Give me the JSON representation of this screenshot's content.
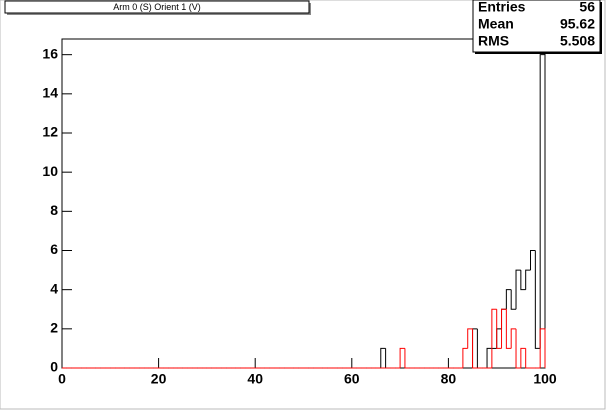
{
  "chart_data": {
    "type": "histogram",
    "title": "Arm 0 (S) Orient 1 (V)",
    "bins": [
      0,
      1,
      2,
      3,
      4,
      5,
      6,
      7,
      8,
      9,
      10,
      11,
      12,
      13,
      14,
      15,
      16,
      17,
      18,
      19,
      20,
      21,
      22,
      23,
      24,
      25,
      26,
      27,
      28,
      29,
      30,
      31,
      32,
      33,
      34,
      35,
      36,
      37,
      38,
      39,
      40,
      41,
      42,
      43,
      44,
      45,
      46,
      47,
      48,
      49,
      50,
      51,
      52,
      53,
      54,
      55,
      56,
      57,
      58,
      59,
      60,
      61,
      62,
      63,
      64,
      65,
      66,
      67,
      68,
      69,
      70,
      71,
      72,
      73,
      74,
      75,
      76,
      77,
      78,
      79,
      80,
      81,
      82,
      83,
      84,
      85,
      86,
      87,
      88,
      89,
      90,
      91,
      92,
      93,
      94,
      95,
      96,
      97,
      98,
      99,
      100
    ],
    "series": [
      {
        "color": "#000000",
        "values": [
          0,
          0,
          0,
          0,
          0,
          0,
          0,
          0,
          0,
          0,
          0,
          0,
          0,
          0,
          0,
          0,
          0,
          0,
          0,
          0,
          0,
          0,
          0,
          0,
          0,
          0,
          0,
          0,
          0,
          0,
          0,
          0,
          0,
          0,
          0,
          0,
          0,
          0,
          0,
          0,
          0,
          0,
          0,
          0,
          0,
          0,
          0,
          0,
          0,
          0,
          0,
          0,
          0,
          0,
          0,
          0,
          0,
          0,
          0,
          0,
          0,
          0,
          0,
          0,
          0,
          0,
          1,
          0,
          0,
          0,
          0,
          0,
          0,
          0,
          0,
          0,
          0,
          0,
          0,
          0,
          0,
          0,
          0,
          0,
          0,
          2,
          0,
          0,
          1,
          1,
          2,
          3,
          4,
          3,
          5,
          4,
          5,
          6,
          1,
          16
        ]
      },
      {
        "color": "#ff0000",
        "values": [
          0,
          0,
          0,
          0,
          0,
          0,
          0,
          0,
          0,
          0,
          0,
          0,
          0,
          0,
          0,
          0,
          0,
          0,
          0,
          0,
          0,
          0,
          0,
          0,
          0,
          0,
          0,
          0,
          0,
          0,
          0,
          0,
          0,
          0,
          0,
          0,
          0,
          0,
          0,
          0,
          0,
          0,
          0,
          0,
          0,
          0,
          0,
          0,
          0,
          0,
          0,
          0,
          0,
          0,
          0,
          0,
          0,
          0,
          0,
          0,
          0,
          0,
          0,
          0,
          0,
          0,
          0,
          0,
          0,
          0,
          1,
          0,
          0,
          0,
          0,
          0,
          0,
          0,
          0,
          0,
          0,
          0,
          0,
          1,
          2,
          0,
          0,
          0,
          0,
          3,
          1,
          3,
          1,
          2,
          0,
          1,
          0,
          0,
          0,
          2
        ]
      }
    ],
    "xlim": [
      0,
      100
    ],
    "xticks": [
      0,
      20,
      40,
      60,
      80,
      100
    ],
    "ylim": [
      0,
      16.8
    ],
    "yticks": [
      0,
      2,
      4,
      6,
      8,
      10,
      12,
      14,
      16
    ],
    "stats": {
      "labels": [
        "Entries",
        "Mean",
        "RMS"
      ],
      "values": [
        56,
        95.62,
        5.508
      ]
    }
  }
}
